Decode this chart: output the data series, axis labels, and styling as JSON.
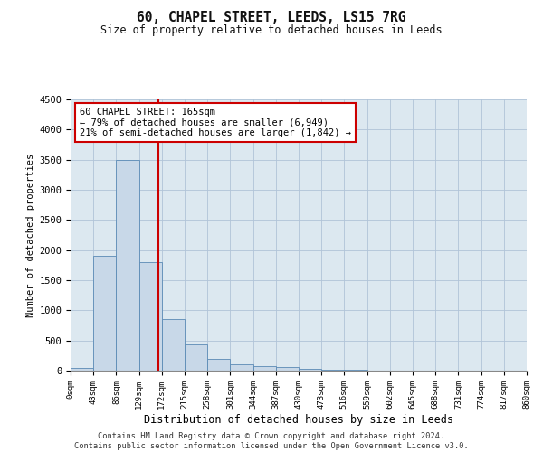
{
  "title": "60, CHAPEL STREET, LEEDS, LS15 7RG",
  "subtitle": "Size of property relative to detached houses in Leeds",
  "xlabel": "Distribution of detached houses by size in Leeds",
  "ylabel": "Number of detached properties",
  "footer_line1": "Contains HM Land Registry data © Crown copyright and database right 2024.",
  "footer_line2": "Contains public sector information licensed under the Open Government Licence v3.0.",
  "property_label": "60 CHAPEL STREET: 165sqm",
  "annotation_line1": "← 79% of detached houses are smaller (6,949)",
  "annotation_line2": "21% of semi-detached houses are larger (1,842) →",
  "property_size": 165,
  "bin_edges": [
    0,
    43,
    86,
    129,
    172,
    215,
    258,
    301,
    344,
    387,
    430,
    473,
    516,
    559,
    602,
    645,
    688,
    731,
    774,
    817,
    860
  ],
  "bar_heights": [
    50,
    1900,
    3500,
    1800,
    850,
    430,
    200,
    110,
    80,
    60,
    30,
    20,
    10,
    5,
    5,
    3,
    2,
    2,
    1,
    1
  ],
  "bar_color": "#c8d8e8",
  "bar_edge_color": "#5a8ab5",
  "vline_color": "#cc0000",
  "vline_x": 165,
  "annotation_box_edgecolor": "#cc0000",
  "plot_bg_color": "#dce8f0",
  "background_color": "#ffffff",
  "grid_color": "#b0c4d8",
  "ylim": [
    0,
    4500
  ],
  "yticks": [
    0,
    500,
    1000,
    1500,
    2000,
    2500,
    3000,
    3500,
    4000,
    4500
  ]
}
